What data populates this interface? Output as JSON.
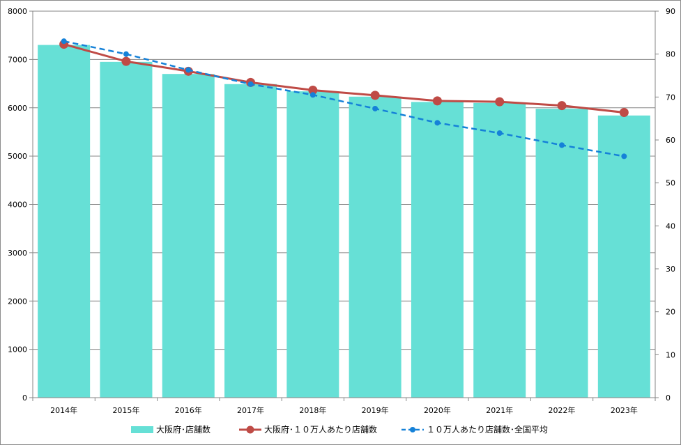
{
  "chart_data": {
    "type": "bar",
    "categories": [
      "2014年",
      "2015年",
      "2016年",
      "2017年",
      "2018年",
      "2019年",
      "2020年",
      "2021年",
      "2022年",
      "2023年"
    ],
    "series": [
      {
        "name": "大阪府･店舗数",
        "type": "bar",
        "axis": "left",
        "color": "#66E0D6",
        "values": [
          7300,
          6950,
          6700,
          6490,
          6340,
          6230,
          6120,
          6100,
          5980,
          5840
        ]
      },
      {
        "name": "大阪府･１０万人あたり店舗数",
        "type": "line",
        "axis": "right",
        "color": "#BF4B46",
        "values": [
          82.3,
          78.3,
          76.0,
          73.4,
          71.6,
          70.4,
          69.1,
          68.9,
          68.0,
          66.4
        ]
      },
      {
        "name": "１０万人あたり店舗数･全国平均",
        "type": "line",
        "style": "dashed",
        "axis": "right",
        "color": "#1581D8",
        "values": [
          83.0,
          80.0,
          76.3,
          73.0,
          70.5,
          67.3,
          64.0,
          61.6,
          58.8,
          56.2
        ]
      }
    ],
    "y_left": {
      "lim": [
        0,
        8000
      ],
      "ticks": [
        0,
        1000,
        2000,
        3000,
        4000,
        5000,
        6000,
        7000,
        8000
      ]
    },
    "y_right": {
      "lim": [
        0,
        90
      ],
      "ticks": [
        0,
        10,
        20,
        30,
        40,
        50,
        60,
        70,
        80,
        90
      ]
    },
    "grid": true,
    "legend_position": "bottom"
  }
}
